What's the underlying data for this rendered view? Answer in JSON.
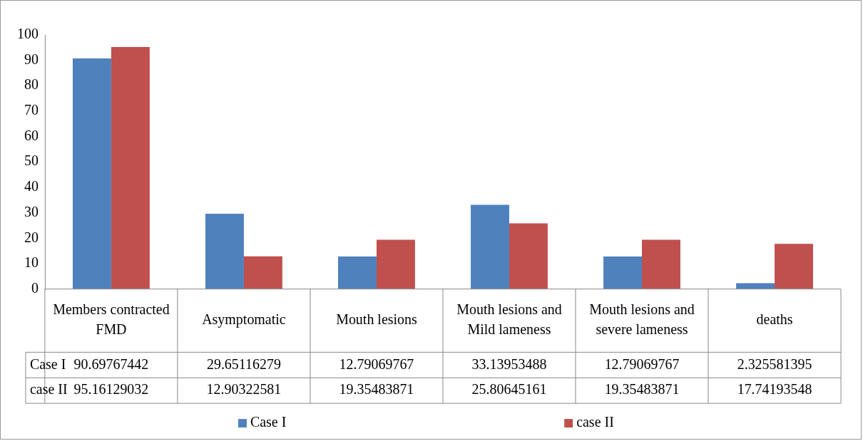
{
  "chart_data": {
    "type": "bar",
    "categories": [
      "Members contracted FMD",
      "Asymptomatic",
      "Mouth lesions",
      "Mouth lesions and Mild lameness",
      "Mouth lesions and severe lameness",
      "deaths"
    ],
    "series": [
      {
        "name": "Case I",
        "color": "#4f81bd",
        "values": [
          90.69767442,
          29.65116279,
          12.79069767,
          33.13953488,
          12.79069767,
          2.325581395
        ]
      },
      {
        "name": "case II",
        "color": "#c0504d",
        "values": [
          95.16129032,
          12.90322581,
          19.35483871,
          25.80645161,
          19.35483871,
          17.74193548
        ]
      }
    ],
    "ylim": [
      0,
      100
    ],
    "yticks": [
      0,
      10,
      20,
      30,
      40,
      50,
      60,
      70,
      80,
      90,
      100
    ],
    "data_labels": true,
    "legend": "bottom"
  }
}
